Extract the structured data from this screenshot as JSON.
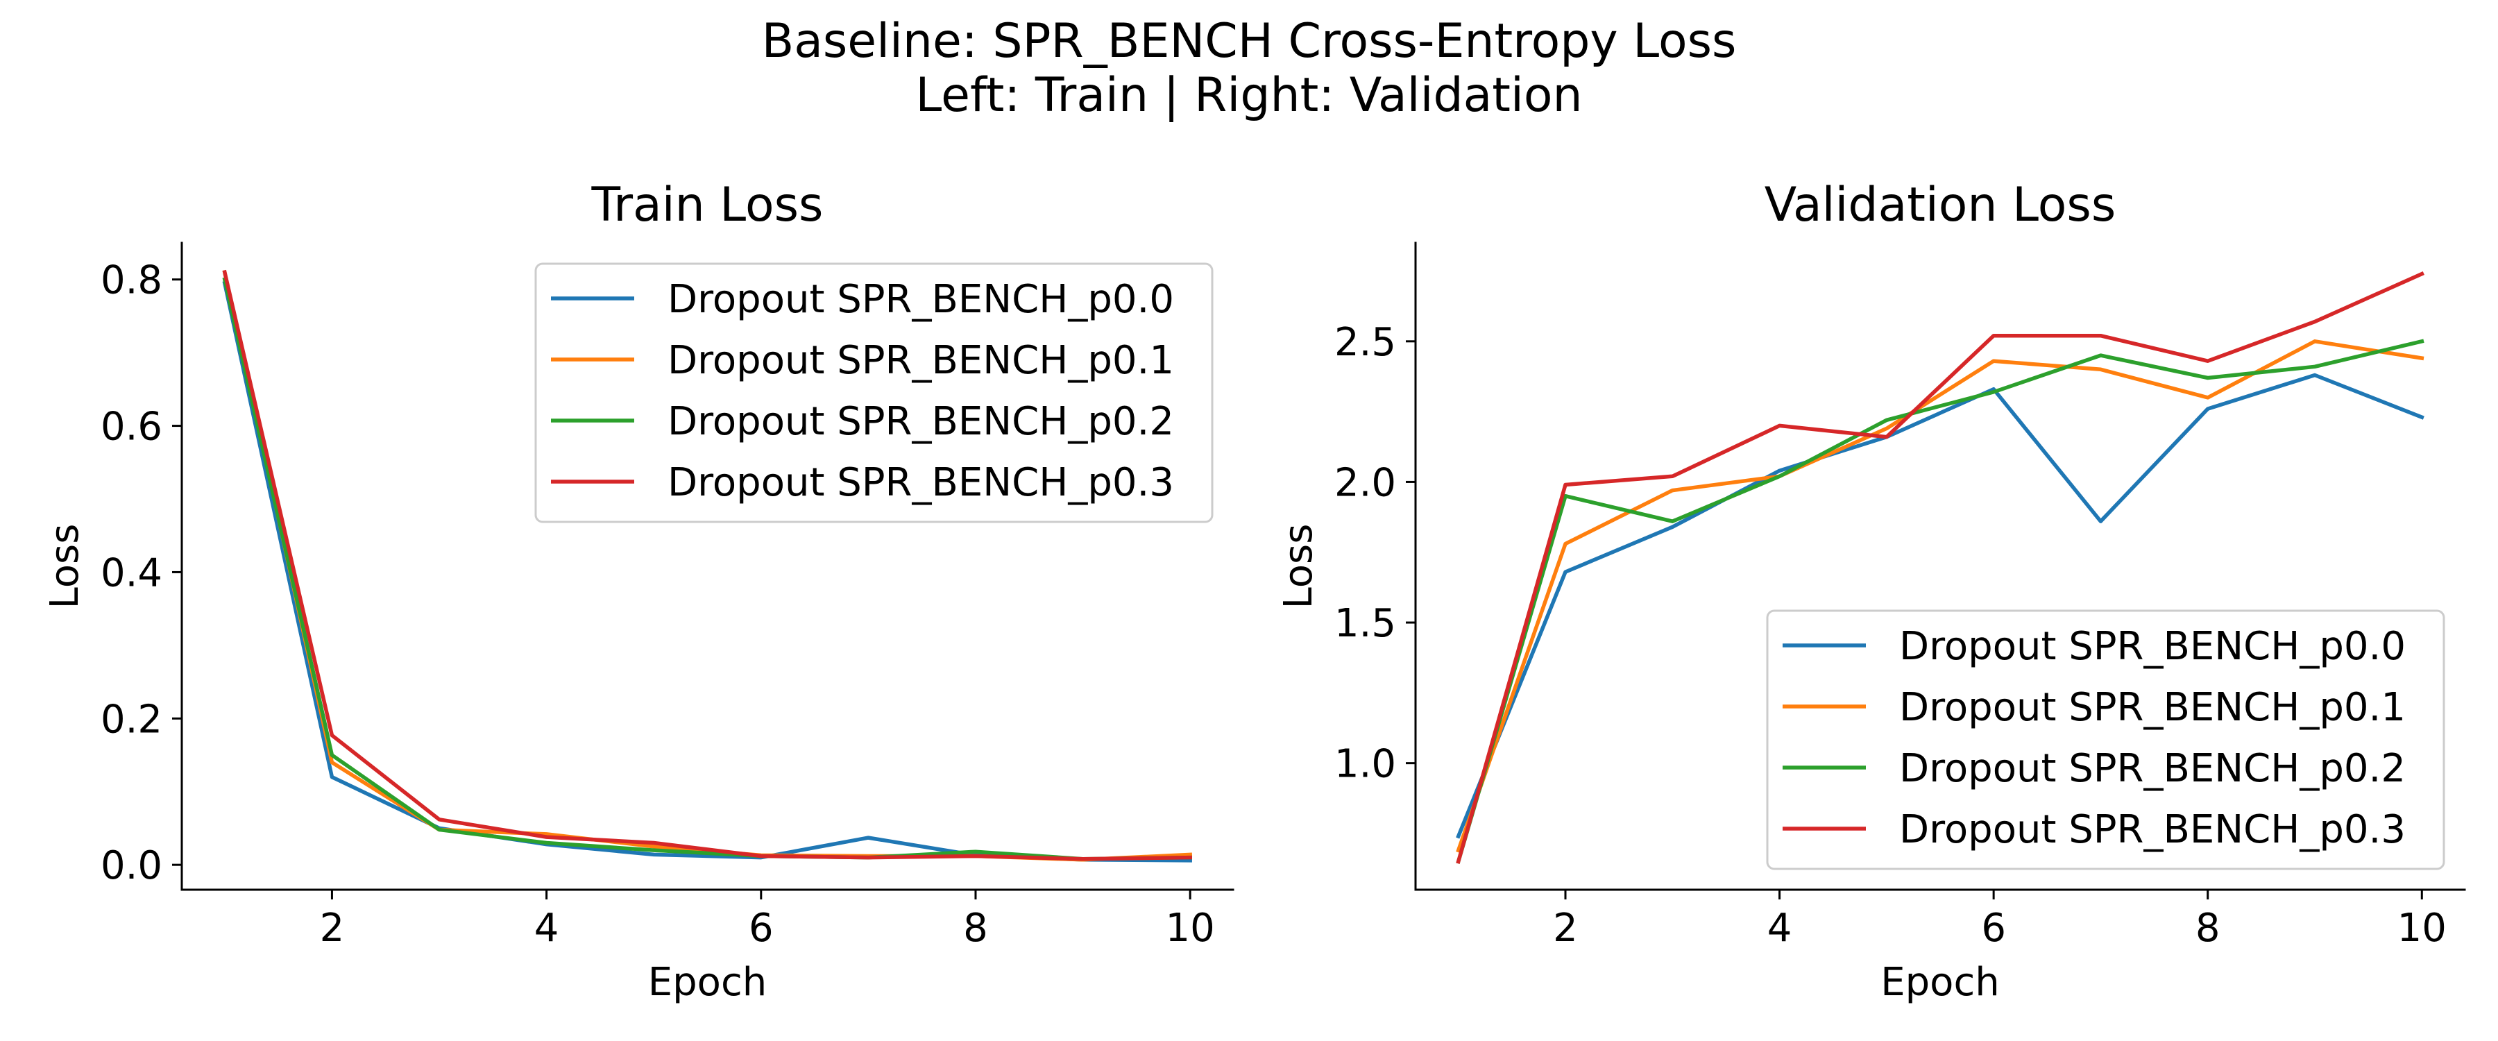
{
  "figure": {
    "title_line1": "Baseline: SPR_BENCH Cross-Entropy Loss",
    "title_line2": "Left: Train  |  Right: Validation"
  },
  "chart_data": [
    {
      "type": "line",
      "title": "Train Loss",
      "xlabel": "Epoch",
      "ylabel": "Loss",
      "xlim": [
        0.6,
        10.4
      ],
      "ylim": [
        -0.034,
        0.85
      ],
      "xticks": [
        2,
        4,
        6,
        8,
        10
      ],
      "yticks": [
        0.0,
        0.2,
        0.4,
        0.6,
        0.8
      ],
      "ytick_decimals": 1,
      "grid": false,
      "legend": "top-right",
      "x": [
        1,
        2,
        3,
        4,
        5,
        6,
        7,
        8,
        9,
        10
      ],
      "series": [
        {
          "name": "Dropout SPR_BENCH_p0.0",
          "color": "#1f77b4",
          "values": [
            0.795,
            0.12,
            0.05,
            0.028,
            0.014,
            0.01,
            0.037,
            0.013,
            0.007,
            0.006
          ]
        },
        {
          "name": "Dropout SPR_BENCH_p0.1",
          "color": "#ff7f0e",
          "values": [
            0.81,
            0.14,
            0.048,
            0.042,
            0.025,
            0.013,
            0.012,
            0.012,
            0.007,
            0.014
          ]
        },
        {
          "name": "Dropout SPR_BENCH_p0.2",
          "color": "#2ca02c",
          "values": [
            0.8,
            0.15,
            0.048,
            0.03,
            0.02,
            0.012,
            0.01,
            0.018,
            0.008,
            0.01
          ]
        },
        {
          "name": "Dropout SPR_BENCH_p0.3",
          "color": "#d62728",
          "values": [
            0.81,
            0.177,
            0.062,
            0.038,
            0.03,
            0.012,
            0.01,
            0.012,
            0.008,
            0.01
          ]
        }
      ]
    },
    {
      "type": "line",
      "title": "Validation Loss",
      "xlabel": "Epoch",
      "ylabel": "Loss",
      "xlim": [
        0.6,
        10.4
      ],
      "ylim": [
        0.55,
        2.85
      ],
      "xticks": [
        2,
        4,
        6,
        8,
        10
      ],
      "yticks": [
        1.0,
        1.5,
        2.0,
        2.5
      ],
      "ytick_decimals": 1,
      "grid": false,
      "legend": "bottom-right",
      "x": [
        1,
        2,
        3,
        4,
        5,
        6,
        7,
        8,
        9,
        10
      ],
      "series": [
        {
          "name": "Dropout SPR_BENCH_p0.0",
          "color": "#1f77b4",
          "values": [
            0.74,
            1.68,
            1.84,
            2.04,
            2.16,
            2.33,
            1.86,
            2.26,
            2.38,
            2.23
          ]
        },
        {
          "name": "Dropout SPR_BENCH_p0.1",
          "color": "#ff7f0e",
          "values": [
            0.69,
            1.78,
            1.97,
            2.02,
            2.19,
            2.43,
            2.4,
            2.3,
            2.5,
            2.44
          ]
        },
        {
          "name": "Dropout SPR_BENCH_p0.2",
          "color": "#2ca02c",
          "values": [
            0.65,
            1.95,
            1.86,
            2.02,
            2.22,
            2.32,
            2.45,
            2.37,
            2.41,
            2.5
          ]
        },
        {
          "name": "Dropout SPR_BENCH_p0.3",
          "color": "#d62728",
          "values": [
            0.65,
            1.99,
            2.02,
            2.2,
            2.16,
            2.52,
            2.52,
            2.43,
            2.57,
            2.74
          ]
        }
      ]
    }
  ]
}
